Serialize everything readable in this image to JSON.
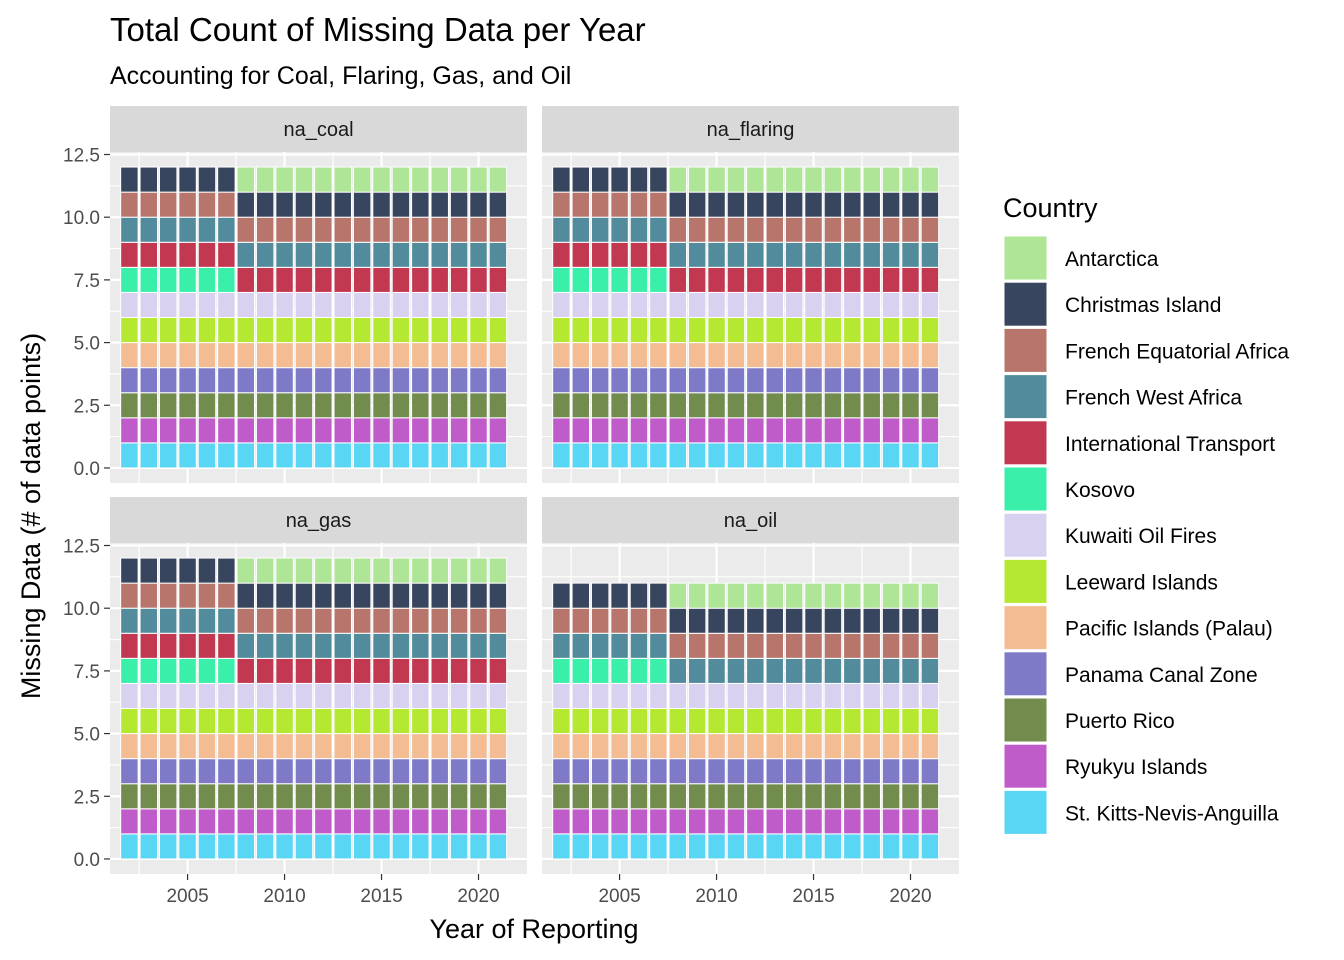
{
  "chart_data": {
    "type": "bar",
    "title": "Total Count of Missing Data per Year",
    "subtitle": "Accounting for Coal, Flaring, Gas, and Oil",
    "xlabel": "Year of Reporting",
    "ylabel": "Missing Data (# of data points)",
    "x_ticks": [
      2005,
      2010,
      2015,
      2020
    ],
    "y_ticks": [
      "0.0",
      "2.5",
      "5.0",
      "7.5",
      "10.0",
      "12.5"
    ],
    "xlim": [
      2001.0,
      2022.5
    ],
    "ylim": [
      -0.6,
      12.6
    ],
    "years": [
      2002,
      2003,
      2004,
      2005,
      2006,
      2007,
      2008,
      2009,
      2010,
      2011,
      2012,
      2013,
      2014,
      2015,
      2016,
      2017,
      2018,
      2019,
      2020,
      2021
    ],
    "legend": {
      "title": "Country",
      "position": "right",
      "entries": [
        {
          "name": "Antarctica",
          "color": "#aee596"
        },
        {
          "name": "Christmas Island",
          "color": "#37465e"
        },
        {
          "name": "French Equatorial Africa",
          "color": "#b7756b"
        },
        {
          "name": "French West Africa",
          "color": "#528c9c"
        },
        {
          "name": "International Transport",
          "color": "#c23851"
        },
        {
          "name": "Kosovo",
          "color": "#3aefaa"
        },
        {
          "name": "Kuwaiti Oil Fires",
          "color": "#d9d1f0"
        },
        {
          "name": "Leeward Islands",
          "color": "#b5e830"
        },
        {
          "name": "Pacific Islands (Palau)",
          "color": "#f4bc93"
        },
        {
          "name": "Panama Canal Zone",
          "color": "#7e7ac8"
        },
        {
          "name": "Puerto Rico",
          "color": "#718c4d"
        },
        {
          "name": "Ryukyu Islands",
          "color": "#c05cca"
        },
        {
          "name": "St. Kitts-Nevis-Anguilla",
          "color": "#5ad6f5"
        }
      ]
    },
    "panels": [
      {
        "name": "na_coal",
        "groups": [
          {
            "years": [
              2002,
              2003,
              2004,
              2005,
              2006,
              2007
            ],
            "countries": [
              "St. Kitts-Nevis-Anguilla",
              "Ryukyu Islands",
              "Puerto Rico",
              "Panama Canal Zone",
              "Pacific Islands (Palau)",
              "Leeward Islands",
              "Kuwaiti Oil Fires",
              "Kosovo",
              "International Transport",
              "French West Africa",
              "French Equatorial Africa",
              "Christmas Island"
            ]
          },
          {
            "years": [
              2008,
              2009,
              2010,
              2011,
              2012,
              2013,
              2014,
              2015,
              2016,
              2017,
              2018,
              2019,
              2020,
              2021
            ],
            "countries": [
              "St. Kitts-Nevis-Anguilla",
              "Ryukyu Islands",
              "Puerto Rico",
              "Panama Canal Zone",
              "Pacific Islands (Palau)",
              "Leeward Islands",
              "Kuwaiti Oil Fires",
              "International Transport",
              "French West Africa",
              "French Equatorial Africa",
              "Christmas Island",
              "Antarctica"
            ]
          }
        ]
      },
      {
        "name": "na_flaring",
        "groups": [
          {
            "years": [
              2002,
              2003,
              2004,
              2005,
              2006,
              2007
            ],
            "countries": [
              "St. Kitts-Nevis-Anguilla",
              "Ryukyu Islands",
              "Puerto Rico",
              "Panama Canal Zone",
              "Pacific Islands (Palau)",
              "Leeward Islands",
              "Kuwaiti Oil Fires",
              "Kosovo",
              "International Transport",
              "French West Africa",
              "French Equatorial Africa",
              "Christmas Island"
            ]
          },
          {
            "years": [
              2008,
              2009,
              2010,
              2011,
              2012,
              2013,
              2014,
              2015,
              2016,
              2017,
              2018,
              2019,
              2020,
              2021
            ],
            "countries": [
              "St. Kitts-Nevis-Anguilla",
              "Ryukyu Islands",
              "Puerto Rico",
              "Panama Canal Zone",
              "Pacific Islands (Palau)",
              "Leeward Islands",
              "Kuwaiti Oil Fires",
              "International Transport",
              "French West Africa",
              "French Equatorial Africa",
              "Christmas Island",
              "Antarctica"
            ]
          }
        ]
      },
      {
        "name": "na_gas",
        "groups": [
          {
            "years": [
              2002,
              2003,
              2004,
              2005,
              2006,
              2007
            ],
            "countries": [
              "St. Kitts-Nevis-Anguilla",
              "Ryukyu Islands",
              "Puerto Rico",
              "Panama Canal Zone",
              "Pacific Islands (Palau)",
              "Leeward Islands",
              "Kuwaiti Oil Fires",
              "Kosovo",
              "International Transport",
              "French West Africa",
              "French Equatorial Africa",
              "Christmas Island"
            ]
          },
          {
            "years": [
              2008,
              2009,
              2010,
              2011,
              2012,
              2013,
              2014,
              2015,
              2016,
              2017,
              2018,
              2019,
              2020,
              2021
            ],
            "countries": [
              "St. Kitts-Nevis-Anguilla",
              "Ryukyu Islands",
              "Puerto Rico",
              "Panama Canal Zone",
              "Pacific Islands (Palau)",
              "Leeward Islands",
              "Kuwaiti Oil Fires",
              "International Transport",
              "French West Africa",
              "French Equatorial Africa",
              "Christmas Island",
              "Antarctica"
            ]
          }
        ]
      },
      {
        "name": "na_oil",
        "groups": [
          {
            "years": [
              2002,
              2003,
              2004,
              2005,
              2006,
              2007
            ],
            "countries": [
              "St. Kitts-Nevis-Anguilla",
              "Ryukyu Islands",
              "Puerto Rico",
              "Panama Canal Zone",
              "Pacific Islands (Palau)",
              "Leeward Islands",
              "Kuwaiti Oil Fires",
              "Kosovo",
              "French West Africa",
              "French Equatorial Africa",
              "Christmas Island"
            ]
          },
          {
            "years": [
              2008,
              2009,
              2010,
              2011,
              2012,
              2013,
              2014,
              2015,
              2016,
              2017,
              2018,
              2019,
              2020,
              2021
            ],
            "countries": [
              "St. Kitts-Nevis-Anguilla",
              "Ryukyu Islands",
              "Puerto Rico",
              "Panama Canal Zone",
              "Pacific Islands (Palau)",
              "Leeward Islands",
              "Kuwaiti Oil Fires",
              "French West Africa",
              "French Equatorial Africa",
              "Christmas Island",
              "Antarctica"
            ]
          }
        ]
      }
    ]
  }
}
